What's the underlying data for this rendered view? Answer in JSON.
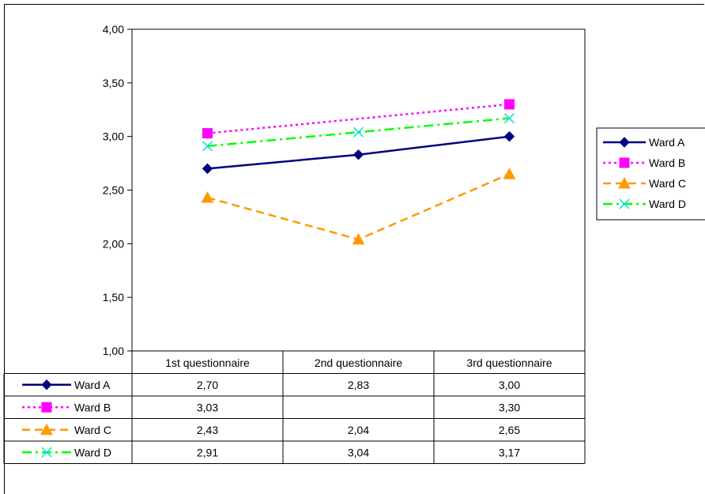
{
  "chart_data": {
    "type": "line",
    "title": "",
    "xlabel": "",
    "ylabel": "",
    "categories": [
      "1st questionnaire",
      "2nd questionnaire",
      "3rd questionnaire"
    ],
    "ylim": [
      1.0,
      4.0
    ],
    "ytick_labels": [
      "1,00",
      "1,50",
      "2,00",
      "2,50",
      "3,00",
      "3,50",
      "4,00"
    ],
    "grid": false,
    "legend_position": "right",
    "data_table": true,
    "series": [
      {
        "name": "Ward A",
        "values": [
          2.7,
          2.83,
          3.0
        ],
        "labels": [
          "2,70",
          "2,83",
          "3,00"
        ],
        "color": "#000080",
        "marker": "diamond",
        "line_style": "solid"
      },
      {
        "name": "Ward B",
        "values": [
          3.03,
          null,
          3.3
        ],
        "labels": [
          "3,03",
          "",
          "3,30"
        ],
        "color": "#ff00ff",
        "marker": "square",
        "line_style": "dotted"
      },
      {
        "name": "Ward C",
        "values": [
          2.43,
          2.04,
          2.65
        ],
        "labels": [
          "2,43",
          "2,04",
          "2,65"
        ],
        "color": "#ff9900",
        "marker": "triangle",
        "line_style": "dashed"
      },
      {
        "name": "Ward D",
        "values": [
          2.91,
          3.04,
          3.17
        ],
        "labels": [
          "2,91",
          "3,04",
          "3,17"
        ],
        "color": "#00ff00",
        "marker_color": "#00e0e0",
        "marker": "x",
        "line_style": "dashdot"
      }
    ]
  }
}
